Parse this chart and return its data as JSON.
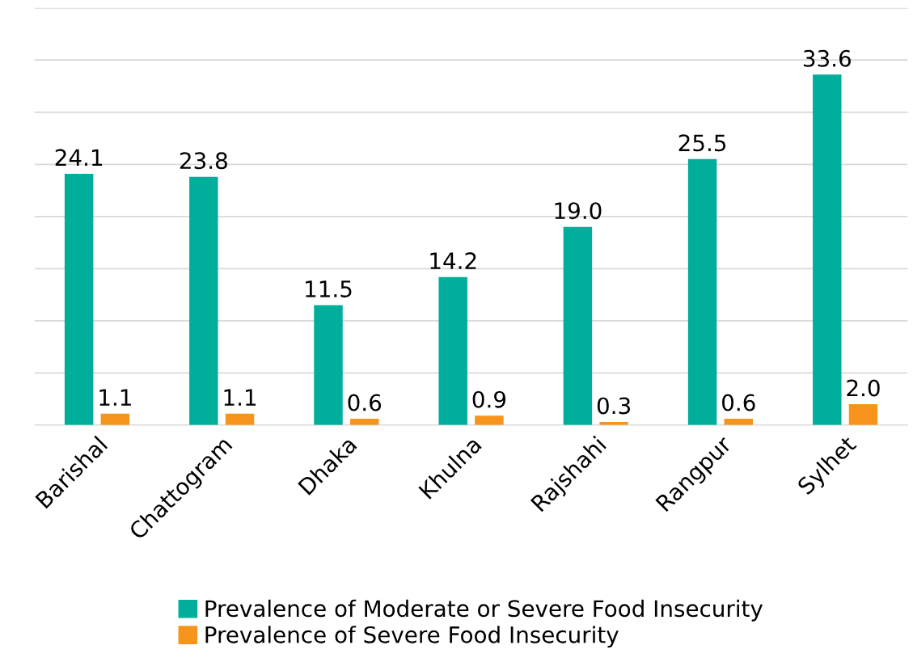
{
  "chart_data": {
    "type": "bar",
    "categories": [
      "Barishal",
      "Chattogram",
      "Dhaka",
      "Khulna",
      "Rajshahi",
      "Rangpur",
      "Sylhet"
    ],
    "series": [
      {
        "name": "Prevalence of Moderate or Severe Food Insecurity",
        "color": "#00ae9b",
        "values": [
          24.1,
          23.8,
          11.5,
          14.2,
          19.0,
          25.5,
          33.6
        ],
        "value_labels": [
          "24.1",
          "23.8",
          "11.5",
          "14.2",
          "19.0",
          "25.5",
          "33.6"
        ]
      },
      {
        "name": "Prevalence of Severe Food Insecurity",
        "color": "#f7941d",
        "values": [
          1.1,
          1.1,
          0.6,
          0.9,
          0.3,
          0.6,
          2.0
        ],
        "value_labels": [
          "1.1",
          "1.1",
          "0.6",
          "0.9",
          "0.3",
          "0.6",
          "2.0"
        ]
      }
    ],
    "ylim": [
      0,
      40
    ],
    "yticks": [
      {
        "value": 0,
        "label": null
      },
      {
        "value": 5,
        "label": null
      },
      {
        "value": 10,
        "label": null
      },
      {
        "value": 15,
        "label": null
      },
      {
        "value": 20,
        "label": null
      },
      {
        "value": 25,
        "label": null
      },
      {
        "value": 30,
        "label": null
      },
      {
        "value": 35,
        "label": null
      },
      {
        "value": 40,
        "label": null
      }
    ],
    "tick_labels": "x",
    "grid": "y",
    "legend": "bottom"
  }
}
